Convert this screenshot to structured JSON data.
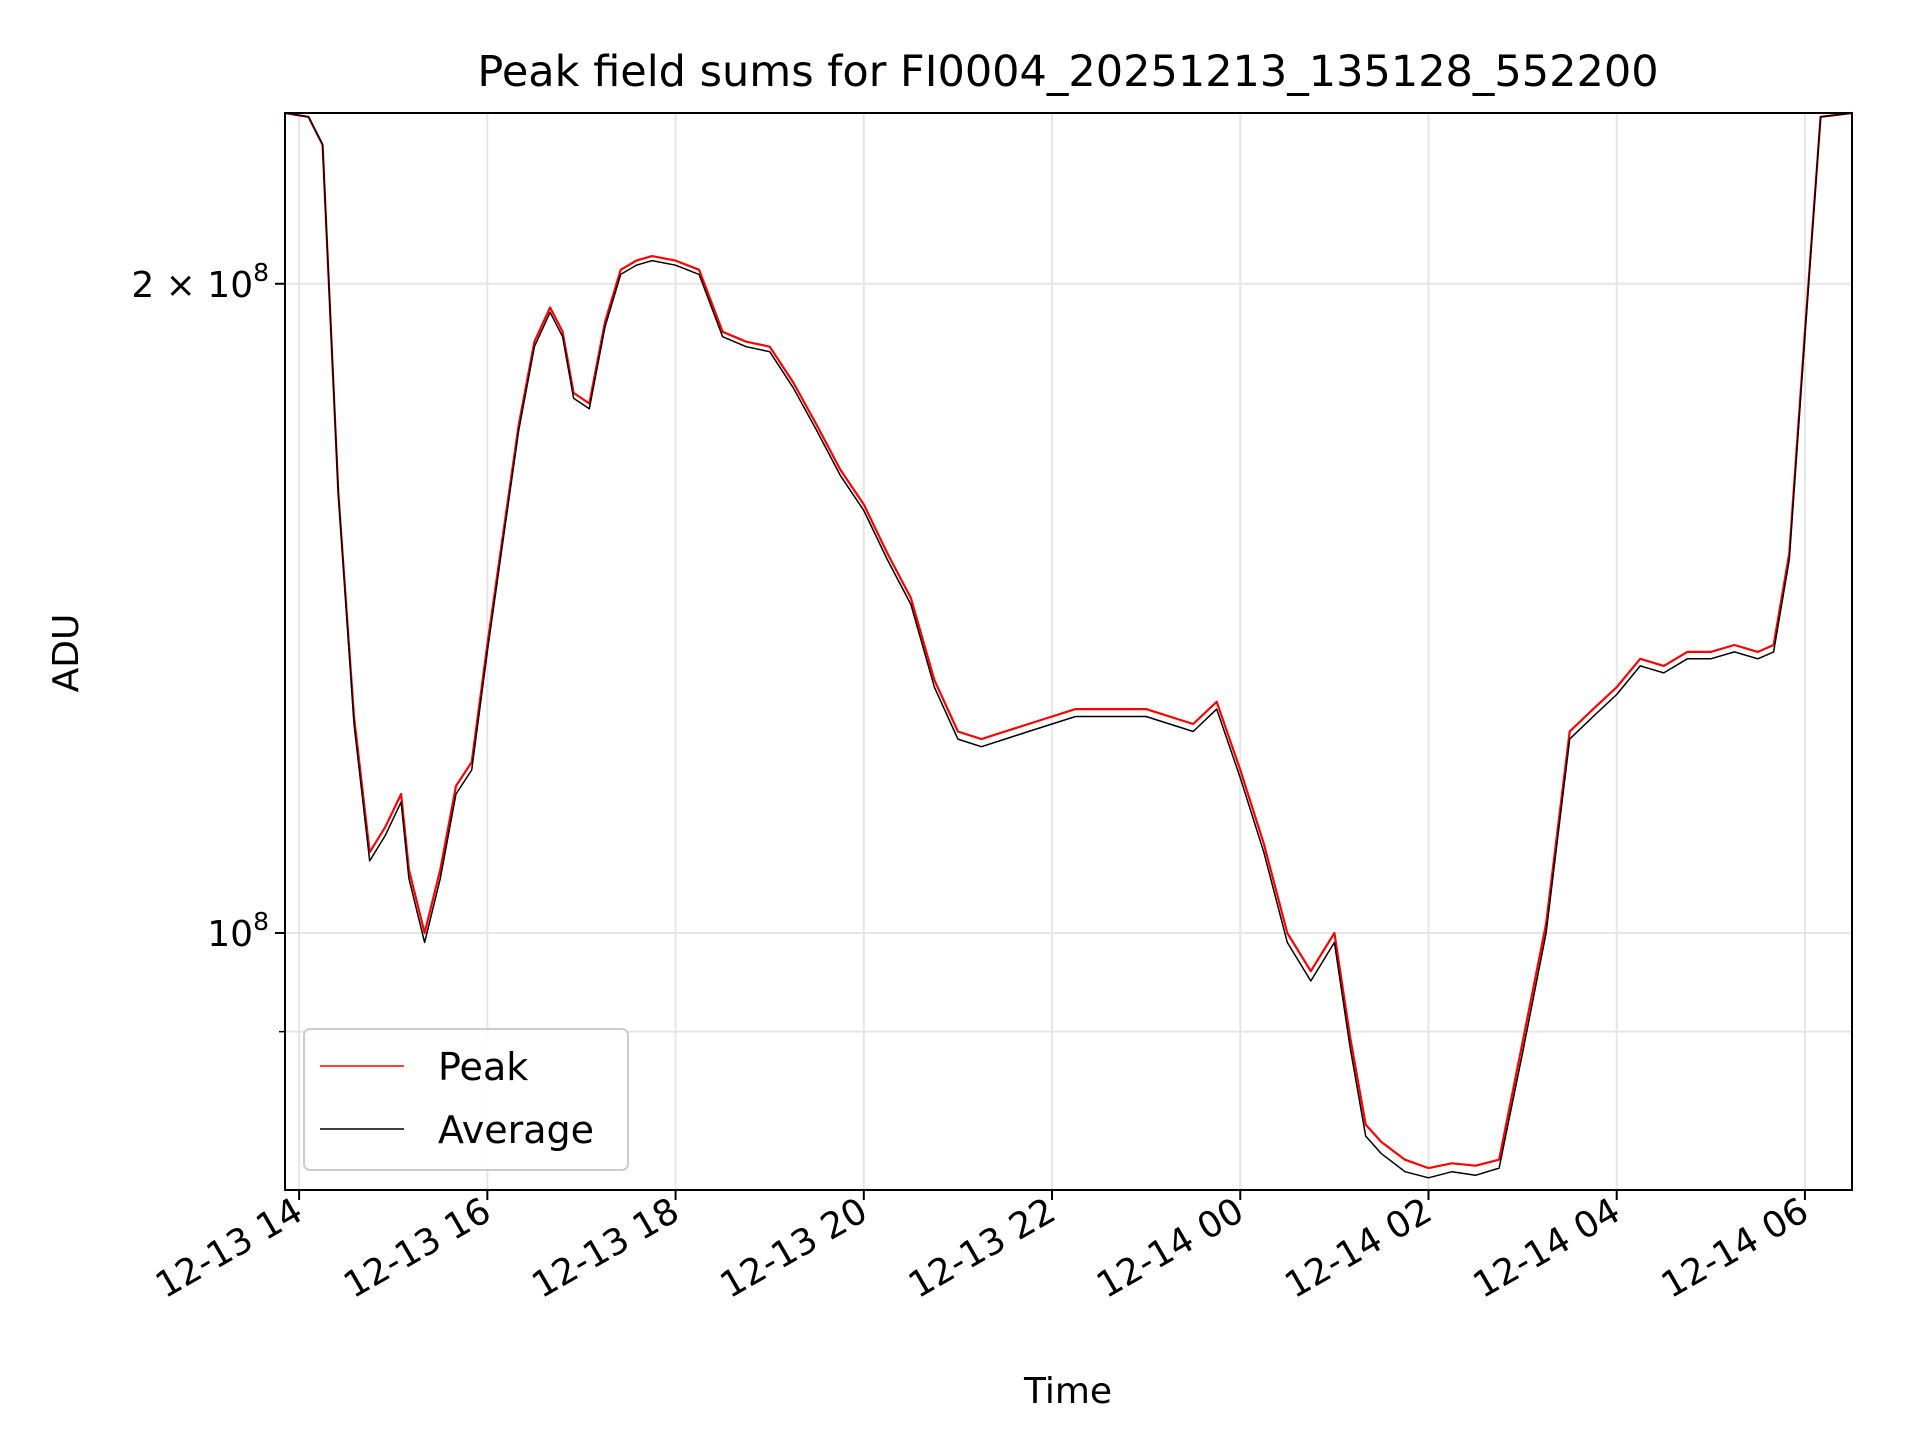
{
  "chart_data": {
    "type": "line",
    "title": "Peak field sums for FI0004_20251213_135128_552200",
    "xlabel": "Time",
    "ylabel": "ADU",
    "yscale": "log",
    "ylim": [
      76000000,
      240000000
    ],
    "xlim": [
      "2025-12-13 13:51",
      "2025-12-14 06:30"
    ],
    "grid": true,
    "legend_position": "lower left",
    "x_tick_labels": [
      "12-13 14",
      "12-13 16",
      "12-13 18",
      "12-13 20",
      "12-13 22",
      "12-14 00",
      "12-14 02",
      "12-14 04",
      "12-14 06"
    ],
    "x_tick_times": [
      "2025-12-13 14:00",
      "2025-12-13 16:00",
      "2025-12-13 18:00",
      "2025-12-13 20:00",
      "2025-12-13 22:00",
      "2025-12-14 00:00",
      "2025-12-14 02:00",
      "2025-12-14 04:00",
      "2025-12-14 06:00"
    ],
    "y_tick_labels": [
      {
        "value": 100000000,
        "mantissa": "",
        "base": "10",
        "exp": "8"
      },
      {
        "value": 200000000,
        "mantissa": "2 × ",
        "base": "10",
        "exp": "8"
      }
    ],
    "y_minor_ticks": [
      90000000
    ],
    "series": [
      {
        "name": "Peak",
        "color": "#ff0000",
        "x": [
          "2025-12-13 13:51",
          "2025-12-13 14:06",
          "2025-12-13 14:15",
          "2025-12-13 14:25",
          "2025-12-13 14:35",
          "2025-12-13 14:45",
          "2025-12-13 14:55",
          "2025-12-13 15:05",
          "2025-12-13 15:10",
          "2025-12-13 15:20",
          "2025-12-13 15:30",
          "2025-12-13 15:40",
          "2025-12-13 15:50",
          "2025-12-13 16:00",
          "2025-12-13 16:10",
          "2025-12-13 16:20",
          "2025-12-13 16:30",
          "2025-12-13 16:40",
          "2025-12-13 16:48",
          "2025-12-13 16:55",
          "2025-12-13 17:05",
          "2025-12-13 17:15",
          "2025-12-13 17:25",
          "2025-12-13 17:35",
          "2025-12-13 17:45",
          "2025-12-13 18:00",
          "2025-12-13 18:15",
          "2025-12-13 18:30",
          "2025-12-13 18:45",
          "2025-12-13 19:00",
          "2025-12-13 19:15",
          "2025-12-13 19:30",
          "2025-12-13 19:45",
          "2025-12-13 20:00",
          "2025-12-13 20:15",
          "2025-12-13 20:30",
          "2025-12-13 20:45",
          "2025-12-13 21:00",
          "2025-12-13 21:15",
          "2025-12-13 21:30",
          "2025-12-13 21:45",
          "2025-12-13 22:00",
          "2025-12-13 22:15",
          "2025-12-13 22:30",
          "2025-12-13 23:00",
          "2025-12-13 23:30",
          "2025-12-13 23:45",
          "2025-12-14 00:00",
          "2025-12-14 00:15",
          "2025-12-14 00:30",
          "2025-12-14 00:45",
          "2025-12-14 01:00",
          "2025-12-14 01:10",
          "2025-12-14 01:20",
          "2025-12-14 01:30",
          "2025-12-14 01:45",
          "2025-12-14 02:00",
          "2025-12-14 02:15",
          "2025-12-14 02:30",
          "2025-12-14 02:45",
          "2025-12-14 03:00",
          "2025-12-14 03:15",
          "2025-12-14 03:30",
          "2025-12-14 03:45",
          "2025-12-14 04:00",
          "2025-12-14 04:15",
          "2025-12-14 04:30",
          "2025-12-14 04:45",
          "2025-12-14 05:00",
          "2025-12-14 05:15",
          "2025-12-14 05:30",
          "2025-12-14 05:40",
          "2025-12-14 05:50",
          "2025-12-14 06:00",
          "2025-12-14 06:10",
          "2025-12-14 06:30"
        ],
        "y": [
          240000000,
          239000000,
          232000000,
          160000000,
          126000000,
          109000000,
          112000000,
          116000000,
          107000000,
          100000000,
          107000000,
          117000000,
          120000000,
          136000000,
          153000000,
          172000000,
          188000000,
          195000000,
          190000000,
          178000000,
          176000000,
          192000000,
          203000000,
          205000000,
          206000000,
          205000000,
          203000000,
          190000000,
          188000000,
          187000000,
          180000000,
          172000000,
          164000000,
          158000000,
          150000000,
          143000000,
          131000000,
          124000000,
          123000000,
          124000000,
          125000000,
          126000000,
          127000000,
          127000000,
          127000000,
          125000000,
          128000000,
          119000000,
          110000000,
          100000000,
          96000000,
          100000000,
          89500000,
          81500000,
          80000000,
          78500000,
          77800000,
          78200000,
          78000000,
          78500000,
          89000000,
          101000000,
          124000000,
          127000000,
          130000000,
          134000000,
          133000000,
          135000000,
          135000000,
          136000000,
          135000000,
          136000000,
          150000000,
          190000000,
          239000000,
          240000000
        ]
      },
      {
        "name": "Average",
        "color": "#000000",
        "x": [
          "2025-12-13 13:51",
          "2025-12-13 14:06",
          "2025-12-13 14:15",
          "2025-12-13 14:25",
          "2025-12-13 14:35",
          "2025-12-13 14:45",
          "2025-12-13 14:55",
          "2025-12-13 15:05",
          "2025-12-13 15:10",
          "2025-12-13 15:20",
          "2025-12-13 15:30",
          "2025-12-13 15:40",
          "2025-12-13 15:50",
          "2025-12-13 16:00",
          "2025-12-13 16:10",
          "2025-12-13 16:20",
          "2025-12-13 16:30",
          "2025-12-13 16:40",
          "2025-12-13 16:48",
          "2025-12-13 16:55",
          "2025-12-13 17:05",
          "2025-12-13 17:15",
          "2025-12-13 17:25",
          "2025-12-13 17:35",
          "2025-12-13 17:45",
          "2025-12-13 18:00",
          "2025-12-13 18:15",
          "2025-12-13 18:30",
          "2025-12-13 18:45",
          "2025-12-13 19:00",
          "2025-12-13 19:15",
          "2025-12-13 19:30",
          "2025-12-13 19:45",
          "2025-12-13 20:00",
          "2025-12-13 20:15",
          "2025-12-13 20:30",
          "2025-12-13 20:45",
          "2025-12-13 21:00",
          "2025-12-13 21:15",
          "2025-12-13 21:30",
          "2025-12-13 21:45",
          "2025-12-13 22:00",
          "2025-12-13 22:15",
          "2025-12-13 22:30",
          "2025-12-13 23:00",
          "2025-12-13 23:30",
          "2025-12-13 23:45",
          "2025-12-14 00:00",
          "2025-12-14 00:15",
          "2025-12-14 00:30",
          "2025-12-14 00:45",
          "2025-12-14 01:00",
          "2025-12-14 01:10",
          "2025-12-14 01:20",
          "2025-12-14 01:30",
          "2025-12-14 01:45",
          "2025-12-14 02:00",
          "2025-12-14 02:15",
          "2025-12-14 02:30",
          "2025-12-14 02:45",
          "2025-12-14 03:00",
          "2025-12-14 03:15",
          "2025-12-14 03:30",
          "2025-12-14 03:45",
          "2025-12-14 04:00",
          "2025-12-14 04:15",
          "2025-12-14 04:30",
          "2025-12-14 04:45",
          "2025-12-14 05:00",
          "2025-12-14 05:15",
          "2025-12-14 05:30",
          "2025-12-14 05:40",
          "2025-12-14 05:50",
          "2025-12-14 06:00",
          "2025-12-14 06:10",
          "2025-12-14 06:30"
        ],
        "y": [
          240000000,
          239000000,
          232000000,
          160000000,
          125000000,
          108000000,
          111000000,
          115000000,
          106000000,
          99000000,
          106000000,
          116000000,
          119000000,
          135000000,
          152000000,
          171000000,
          187000000,
          194000000,
          189000000,
          177000000,
          175000000,
          191000000,
          202000000,
          204000000,
          205000000,
          204000000,
          202000000,
          189000000,
          187000000,
          186000000,
          179000000,
          171000000,
          163000000,
          157000000,
          149000000,
          142000000,
          130000000,
          123000000,
          122000000,
          123000000,
          124000000,
          125000000,
          126000000,
          126000000,
          126000000,
          124000000,
          127000000,
          118000000,
          109000000,
          99000000,
          95000000,
          99000000,
          88500000,
          80500000,
          79000000,
          77500000,
          77000000,
          77500000,
          77200000,
          77800000,
          88000000,
          100000000,
          123000000,
          126000000,
          129000000,
          133000000,
          132000000,
          134000000,
          134000000,
          135000000,
          134000000,
          135000000,
          149000000,
          189000000,
          239000000,
          240000000
        ]
      }
    ]
  }
}
